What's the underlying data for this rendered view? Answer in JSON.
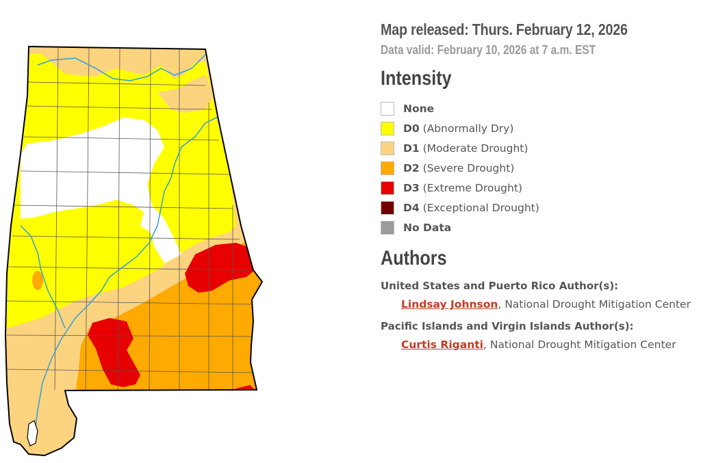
{
  "map": {
    "region": "Alabama",
    "colors": {
      "none": "#ffffff",
      "d0": "#ffff00",
      "d1": "#fcd37f",
      "d2": "#ffaa00",
      "d3": "#e60000",
      "d4": "#730000",
      "no_data": "#9b9b9b",
      "river": "#2f9fd8",
      "border": "#000000"
    }
  },
  "header": {
    "released": "Map released: Thurs. February 12, 2026",
    "valid": "Data valid: February 10, 2026 at 7 a.m. EST"
  },
  "intensity": {
    "title": "Intensity",
    "items": [
      {
        "code": "None",
        "desc": "",
        "color": "#ffffff"
      },
      {
        "code": "D0",
        "desc": "(Abnormally Dry)",
        "color": "#ffff00"
      },
      {
        "code": "D1",
        "desc": "(Moderate Drought)",
        "color": "#fcd37f"
      },
      {
        "code": "D2",
        "desc": "(Severe Drought)",
        "color": "#ffaa00"
      },
      {
        "code": "D3",
        "desc": "(Extreme Drought)",
        "color": "#e60000"
      },
      {
        "code": "D4",
        "desc": "(Exceptional Drought)",
        "color": "#730000"
      },
      {
        "code": "No Data",
        "desc": "",
        "color": "#9b9b9b"
      }
    ]
  },
  "authors": {
    "title": "Authors",
    "us": {
      "label": "United States and Puerto Rico Author(s):",
      "name": "Lindsay Johnson",
      "org": ", National Drought Mitigation Center"
    },
    "pacific": {
      "label": "Pacific Islands and Virgin Islands Author(s):",
      "name": "Curtis Riganti",
      "org": ", National Drought Mitigation Center"
    }
  }
}
